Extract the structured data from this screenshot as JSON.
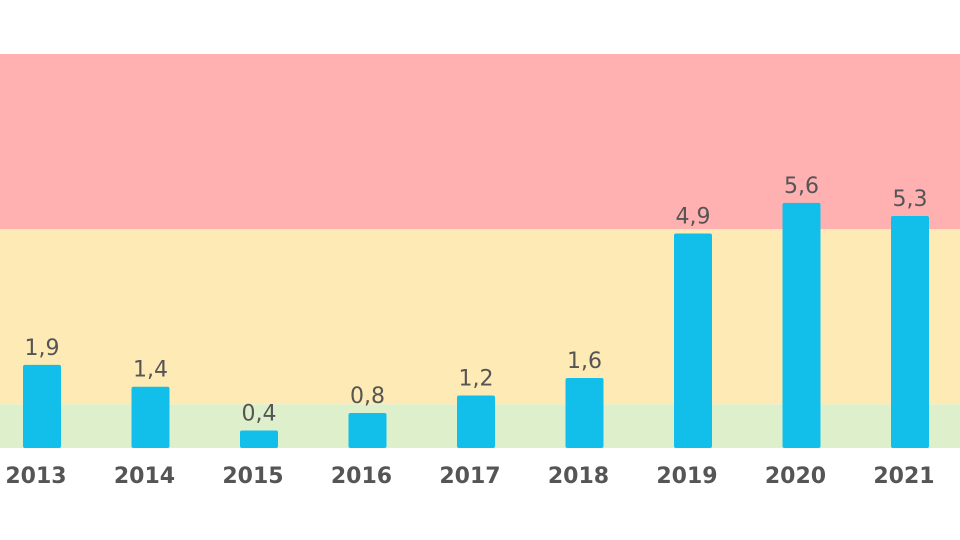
{
  "chart_data": {
    "type": "bar",
    "title": "",
    "xlabel": "",
    "ylabel": "",
    "categories": [
      "2013",
      "2014",
      "2015",
      "2016",
      "2017",
      "2018",
      "2019",
      "2020",
      "2021"
    ],
    "values": [
      1.9,
      1.4,
      0.4,
      0.8,
      1.2,
      1.6,
      4.9,
      5.6,
      5.3
    ],
    "value_labels": [
      "1,9",
      "1,4",
      "0,4",
      "0,8",
      "1,2",
      "1,6",
      "4,9",
      "5,6",
      "5,3"
    ],
    "ylim": [
      0,
      9
    ],
    "grid": false,
    "bar_color": "#12BFEA",
    "bands": [
      {
        "from": 0,
        "to": 1,
        "color": "#DDEFCB"
      },
      {
        "from": 1,
        "to": 5,
        "color": "#FDEAB5"
      },
      {
        "from": 5,
        "to": 9,
        "color": "#FFB0B1"
      }
    ],
    "text_color": "#555555"
  }
}
